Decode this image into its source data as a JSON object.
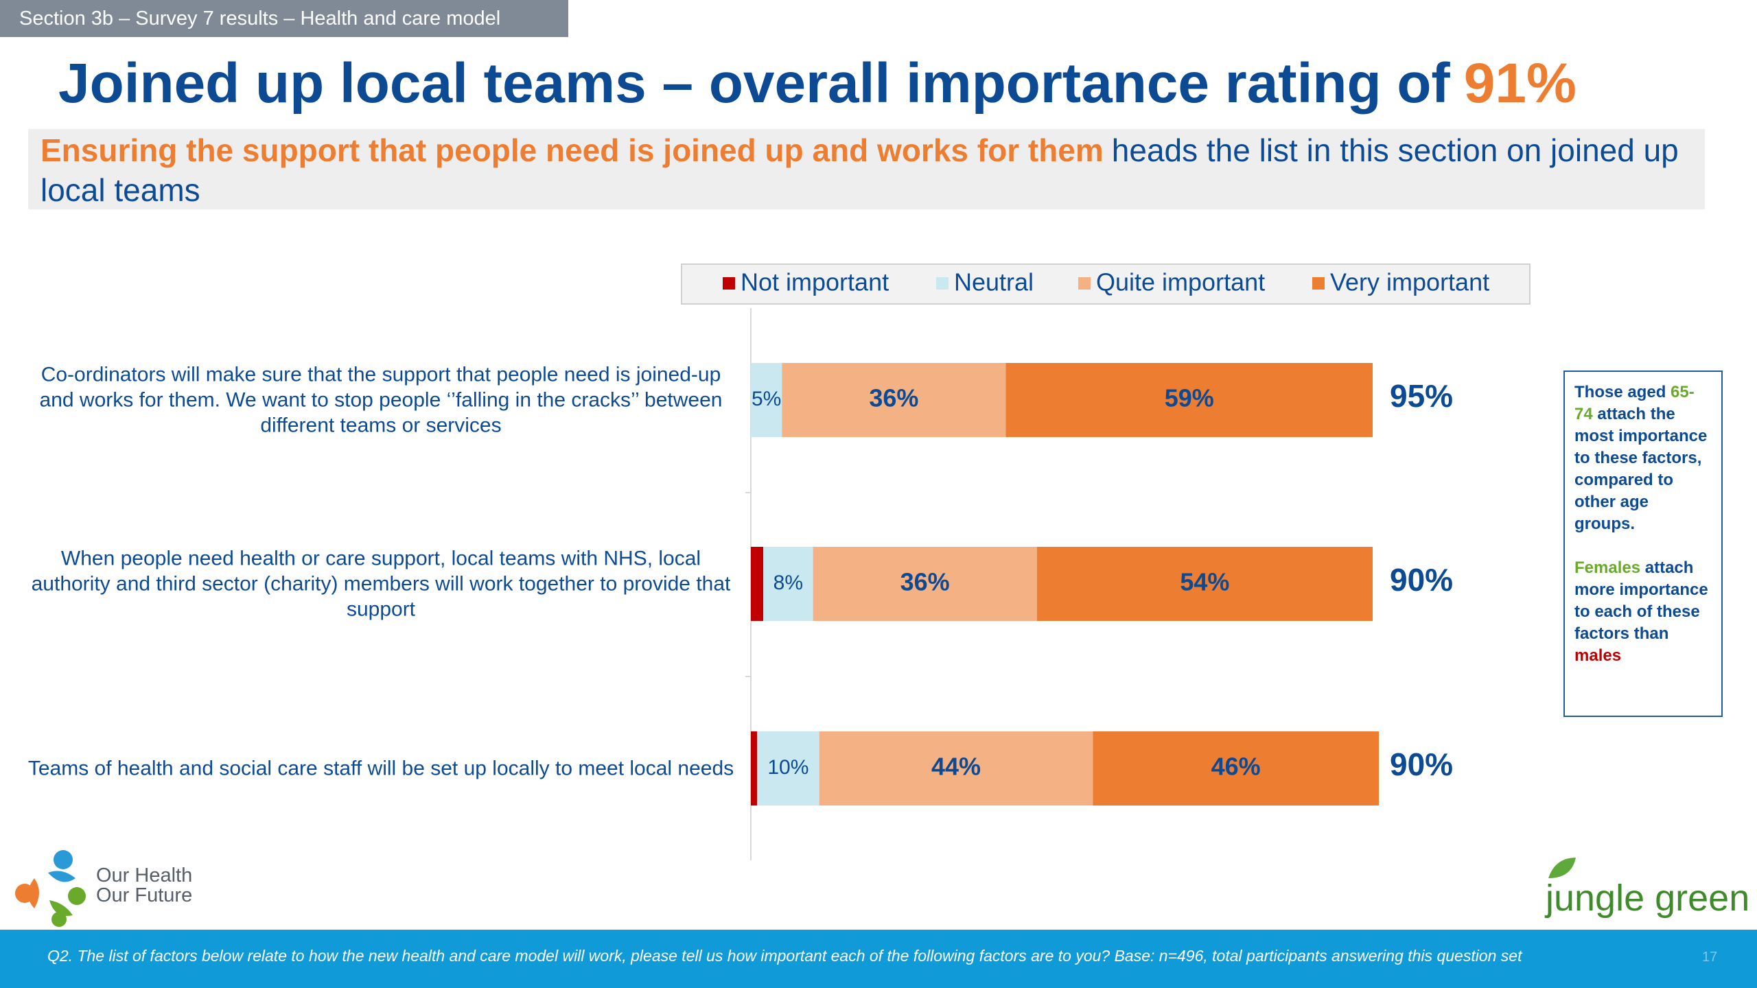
{
  "section_label": "Section 3b – Survey 7 results – Health and care model",
  "title": "Joined up local teams – overall importance rating of",
  "title_highlight": "91%",
  "subtitle_highlight": "Ensuring the support that people need is joined up and works for them",
  "subtitle_rest": "heads the list in this section on joined up local teams",
  "chart_data": {
    "type": "bar",
    "horizontal": true,
    "stacked": true,
    "categories": [
      "Co-ordinators will make sure that the support that people need is joined-up and works for them. We want to stop people ‘’falling in the cracks’’ between different teams or services",
      "When people need health or care support, local teams with NHS, local authority and third sector (charity) members will work together to provide that support",
      "Teams of health and social care staff will be set up locally to meet local needs"
    ],
    "series": [
      {
        "name": "Not important",
        "color": "#c00000",
        "values": [
          0,
          2,
          1
        ]
      },
      {
        "name": "Neutral",
        "color": "#c9e8ef",
        "values": [
          5,
          8,
          10
        ],
        "value_labels": [
          "5%",
          "8%",
          "10%"
        ]
      },
      {
        "name": "Quite important",
        "color": "#f4b183",
        "values": [
          36,
          36,
          44
        ],
        "value_labels": [
          "36%",
          "36%",
          "44%"
        ]
      },
      {
        "name": "Very important",
        "color": "#ed7d31",
        "values": [
          59,
          54,
          46
        ],
        "value_labels": [
          "59%",
          "54%",
          "46%"
        ]
      }
    ],
    "totals": {
      "values": [
        95,
        90,
        90
      ],
      "value_labels": [
        "95%",
        "90%",
        "90%"
      ]
    },
    "xlim": [
      0,
      100
    ],
    "legend": "top"
  },
  "note": [
    "Those aged",
    "65-74",
    "attach the most importance to these factors, compared to other age groups.",
    "Females",
    "attach more importance to each of these factors than",
    "males"
  ],
  "logo_left": [
    "Our Health",
    "Our Future"
  ],
  "logo_right": "jungle green",
  "footer": "Q2. The list of factors below relate to how the new health and care model will work, please tell us how important each of the following factors are to you? Base: n=496, total participants answering this question set",
  "page_number": "17"
}
